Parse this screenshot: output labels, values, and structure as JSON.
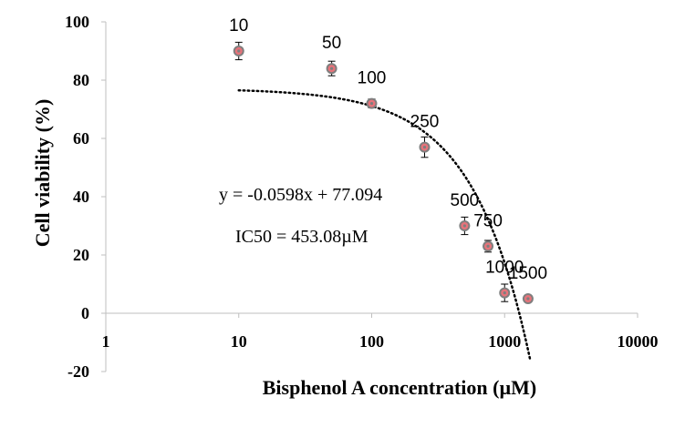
{
  "chart_data": {
    "type": "scatter",
    "xlabel": "Bisphenol A concentration (µM)",
    "ylabel": "Cell viability (%)",
    "x_scale": "log",
    "xlim": [
      1,
      10000
    ],
    "ylim": [
      -20,
      100
    ],
    "x_ticks": [
      "1",
      "10",
      "100",
      "1000",
      "10000"
    ],
    "y_ticks": [
      "-20",
      "0",
      "20",
      "40",
      "60",
      "80",
      "100"
    ],
    "grid": false,
    "marker_color": "#e8737a",
    "marker_edge_color": "#7f7f7f",
    "trendline_color": "#000000",
    "points": [
      {
        "x": 10,
        "y": 90,
        "err": 3,
        "label": "10"
      },
      {
        "x": 50,
        "y": 84,
        "err": 2.5,
        "label": "50"
      },
      {
        "x": 100,
        "y": 72,
        "err": 1.5,
        "label": "100"
      },
      {
        "x": 250,
        "y": 57,
        "err": 3.5,
        "label": "250"
      },
      {
        "x": 500,
        "y": 30,
        "err": 3,
        "label": "500"
      },
      {
        "x": 750,
        "y": 23,
        "err": 2,
        "label": "750"
      },
      {
        "x": 1000,
        "y": 7,
        "err": 3,
        "label": "1000"
      },
      {
        "x": 1500,
        "y": 5,
        "err": 1,
        "label": "1500"
      }
    ],
    "trendline": {
      "type": "linear",
      "slope": -0.0598,
      "intercept": 77.094,
      "style": "dotted"
    },
    "annotations": [
      "y = -0.0598x + 77.094",
      "IC50 = 453.08µM"
    ]
  }
}
